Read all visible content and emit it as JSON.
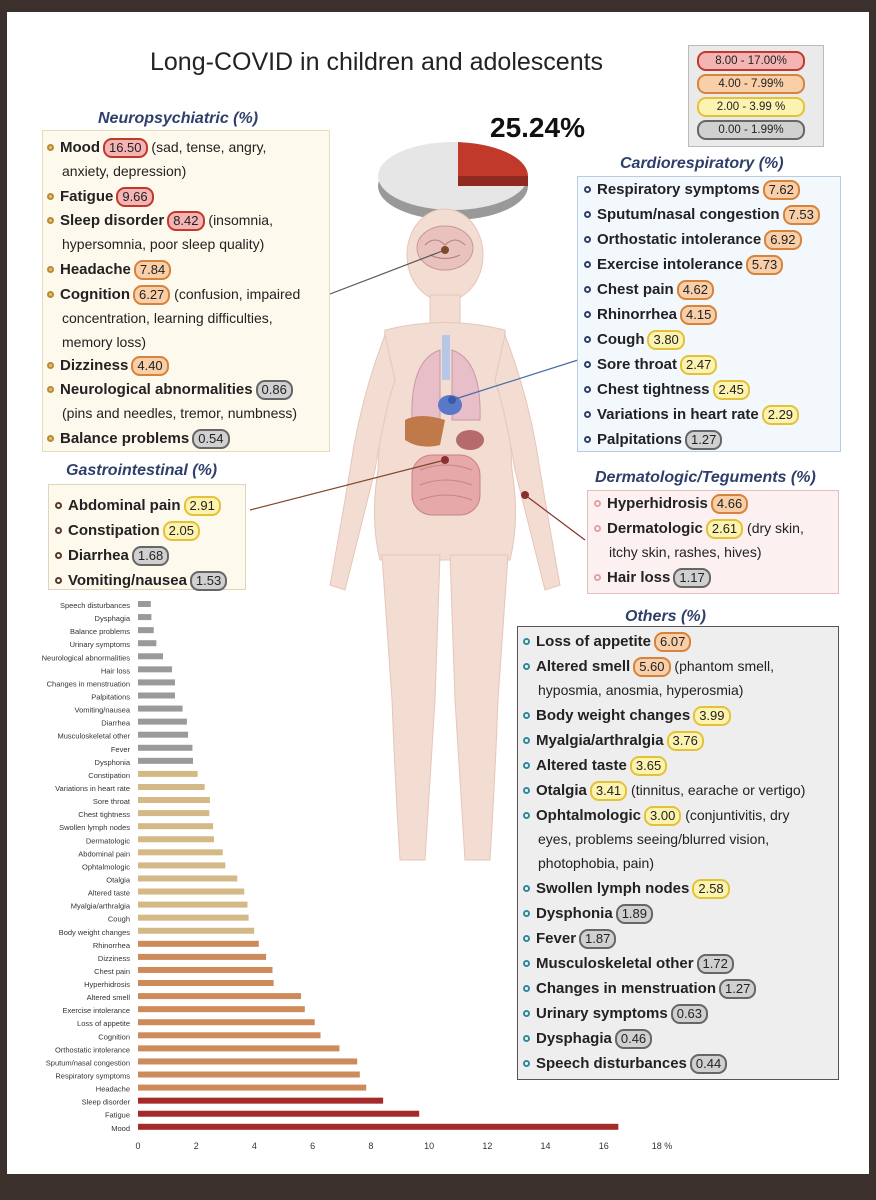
{
  "title": "Long-COVID in children and adolescents",
  "overall_prevalence": "25.24%",
  "legend": [
    {
      "label": "8.00 - 17.00%",
      "color": "#f4b4b4",
      "border": "#c0392b"
    },
    {
      "label": "4.00 - 7.99%",
      "color": "#f8cfa8",
      "border": "#d6833c"
    },
    {
      "label": "2.00 - 3.99 %",
      "color": "#fdf3b0",
      "border": "#e3c23a"
    },
    {
      "label": "0.00 - 1.99%",
      "color": "#d0d0d0",
      "border": "#666666"
    }
  ],
  "sections": {
    "neuro": {
      "title": "Neuropsychiatric (%)"
    },
    "cardio": {
      "title": "Cardiorespiratory (%)"
    },
    "gastro": {
      "title": "Gastrointestinal (%)"
    },
    "derma": {
      "title": "Dermatologic/Teguments (%)"
    },
    "others": {
      "title": "Others (%)"
    }
  },
  "neuro_items": [
    {
      "name": "Mood",
      "value": "16.50",
      "note": "(sad, tense, angry,",
      "cont": "anxiety, depression)"
    },
    {
      "name": "Fatigue",
      "value": "9.66"
    },
    {
      "name": "Sleep disorder",
      "value": "8.42",
      "note": "(insomnia,",
      "cont": "hypersomnia, poor sleep quality)"
    },
    {
      "name": "Headache",
      "value": "7.84"
    },
    {
      "name": "Cognition",
      "value": "6.27",
      "note": "(confusion, impaired",
      "cont": "concentration, learning difficulties,",
      "cont2": "memory loss)"
    },
    {
      "name": "Dizziness",
      "value": "4.40"
    },
    {
      "name": "Neurological abnormalities",
      "value": "0.86",
      "cont": "(pins and needles, tremor, numbness)"
    },
    {
      "name": "Balance problems",
      "value": "0.54"
    }
  ],
  "cardio_items": [
    {
      "name": "Respiratory symptoms",
      "value": "7.62"
    },
    {
      "name": "Sputum/nasal congestion",
      "value": "7.53"
    },
    {
      "name": "Orthostatic intolerance",
      "value": "6.92"
    },
    {
      "name": "Exercise intolerance",
      "value": "5.73"
    },
    {
      "name": "Chest pain",
      "value": "4.62"
    },
    {
      "name": "Rhinorrhea",
      "value": "4.15"
    },
    {
      "name": "Cough",
      "value": "3.80"
    },
    {
      "name": "Sore throat",
      "value": "2.47"
    },
    {
      "name": "Chest tightness",
      "value": "2.45"
    },
    {
      "name": "Variations in heart rate",
      "value": "2.29"
    },
    {
      "name": "Palpitations",
      "value": "1.27"
    }
  ],
  "gastro_items": [
    {
      "name": "Abdominal pain",
      "value": "2.91"
    },
    {
      "name": "Constipation",
      "value": "2.05"
    },
    {
      "name": "Diarrhea",
      "value": "1.68"
    },
    {
      "name": "Vomiting/nausea",
      "value": "1.53"
    }
  ],
  "derma_items": [
    {
      "name": "Hyperhidrosis",
      "value": "4.66"
    },
    {
      "name": "Dermatologic",
      "value": "2.61",
      "note": "(dry skin,",
      "cont": "itchy skin, rashes, hives)"
    },
    {
      "name": "Hair loss",
      "value": "1.17"
    }
  ],
  "others_items": [
    {
      "name": "Loss of appetite",
      "value": "6.07"
    },
    {
      "name": "Altered smell",
      "value": "5.60",
      "note": "(phantom smell,",
      "cont": "hyposmia, anosmia, hyperosmia)"
    },
    {
      "name": "Body weight changes",
      "value": "3.99"
    },
    {
      "name": "Myalgia/arthralgia",
      "value": "3.76"
    },
    {
      "name": "Altered taste",
      "value": "3.65"
    },
    {
      "name": "Otalgia",
      "value": "3.41",
      "note": "(tinnitus, earache or vertigo)"
    },
    {
      "name": "Ophtalmologic",
      "value": "3.00",
      "note": "(conjuntivitis, dry",
      "cont": "eyes, problems seeing/blurred vision,",
      "cont2": "photophobia, pain)"
    },
    {
      "name": "Swollen lymph nodes",
      "value": "2.58"
    },
    {
      "name": "Dysphonia",
      "value": "1.89"
    },
    {
      "name": "Fever",
      "value": "1.87"
    },
    {
      "name": "Musculoskeletal other",
      "value": "1.72"
    },
    {
      "name": "Changes in menstruation",
      "value": "1.27"
    },
    {
      "name": "Urinary symptoms",
      "value": "0.63"
    },
    {
      "name": "Dysphagia",
      "value": "0.46"
    },
    {
      "name": "Speech disturbances",
      "value": "0.44"
    }
  ],
  "chart_data": {
    "type": "bar",
    "orientation": "horizontal",
    "categories": [
      "Speech disturbances",
      "Dysphagia",
      "Balance problems",
      "Urinary symptoms",
      "Neurological abnormalities",
      "Hair loss",
      "Changes in menstruation",
      "Palpitations",
      "Vomiting/nausea",
      "Diarrhea",
      "Musculoskeletal other",
      "Fever",
      "Dysphonia",
      "Constipation",
      "Variations in heart rate",
      "Sore throat",
      "Chest tightness",
      "Swollen lymph nodes",
      "Dermatologic",
      "Abdominal pain",
      "Ophtalmologic",
      "Otalgia",
      "Altered taste",
      "Myalgia/arthralgia",
      "Cough",
      "Body weight changes",
      "Rhinorrhea",
      "Dizziness",
      "Chest pain",
      "Hyperhidrosis",
      "Altered smell",
      "Exercise intolerance",
      "Loss of appetite",
      "Cognition",
      "Orthostatic intolerance",
      "Sputum/nasal congestion",
      "Respiratory symptoms",
      "Headache",
      "Sleep disorder",
      "Fatigue",
      "Mood"
    ],
    "values": [
      0.44,
      0.46,
      0.54,
      0.63,
      0.86,
      1.17,
      1.27,
      1.27,
      1.53,
      1.68,
      1.72,
      1.87,
      1.89,
      2.05,
      2.29,
      2.47,
      2.45,
      2.58,
      2.61,
      2.91,
      3.0,
      3.41,
      3.65,
      3.76,
      3.8,
      3.99,
      4.15,
      4.4,
      4.62,
      4.66,
      5.6,
      5.73,
      6.07,
      6.27,
      6.92,
      7.53,
      7.62,
      7.84,
      8.42,
      9.66,
      16.5
    ],
    "xticks": [
      "0",
      "2",
      "4",
      "6",
      "8",
      "10",
      "12",
      "14",
      "16",
      "18 %"
    ],
    "xlim": [
      0,
      18
    ],
    "bar_colors": {
      "high": "#a52a2a",
      "mid": "#cd8a5a",
      "low": "#d4b886",
      "min": "#9a9a9a"
    }
  }
}
